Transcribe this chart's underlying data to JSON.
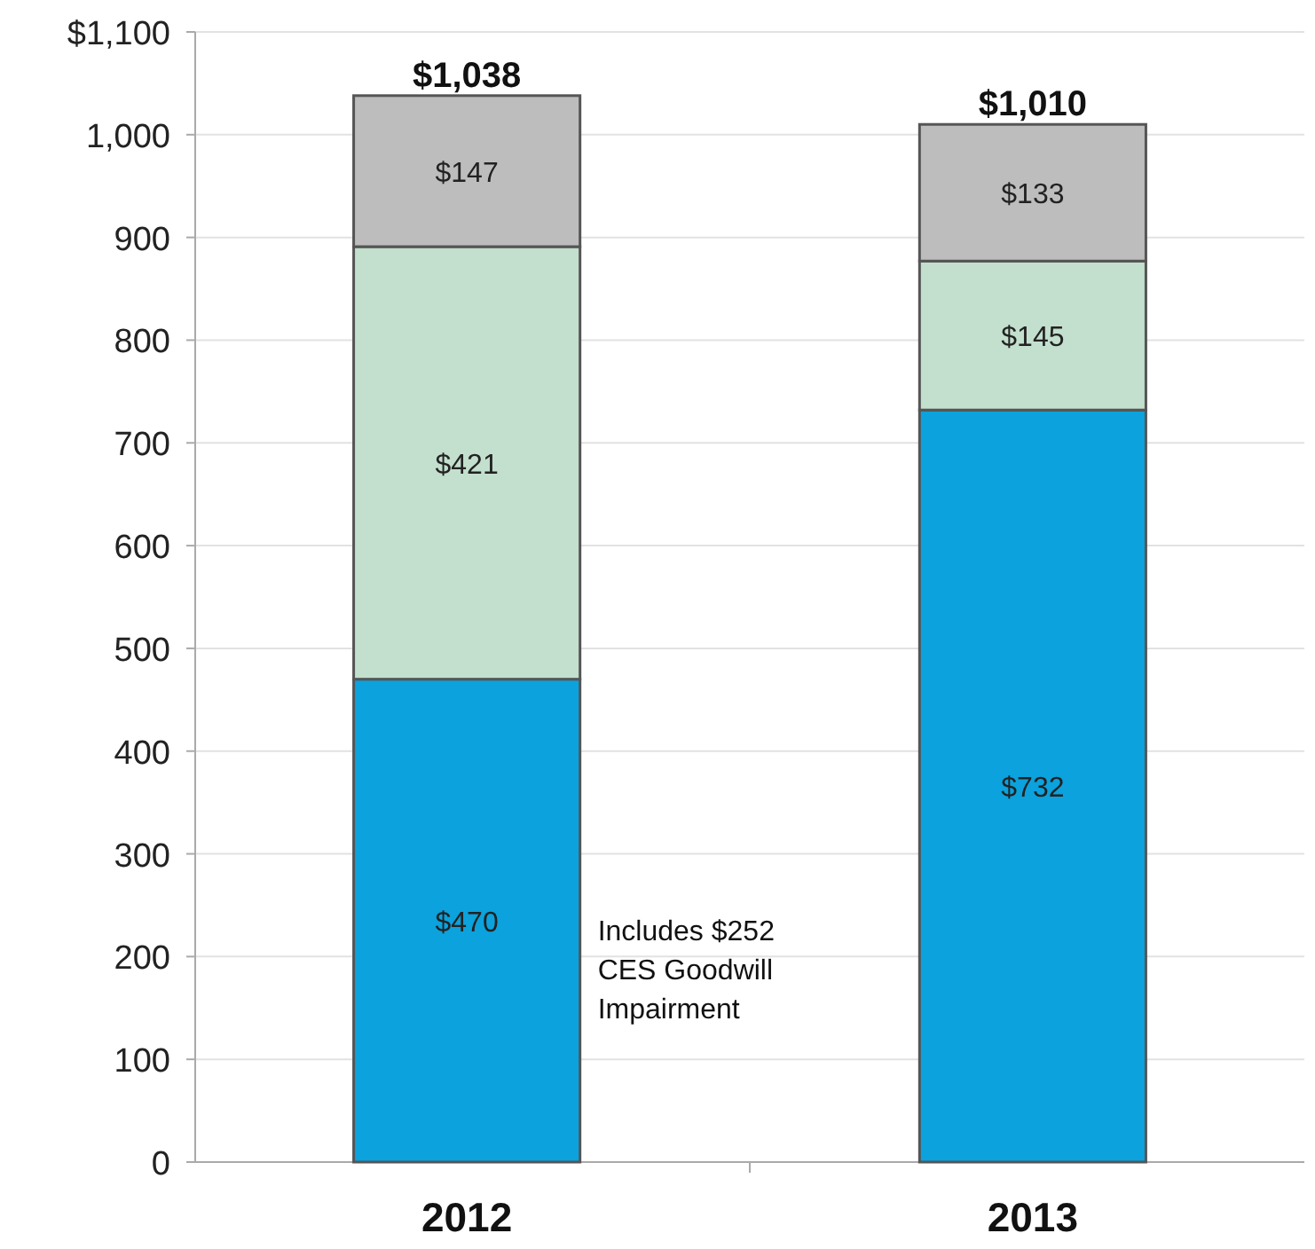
{
  "chart_data": {
    "type": "bar",
    "stacked": true,
    "categories": [
      "2012",
      "2013"
    ],
    "series": [
      {
        "color": "#0ba2dd",
        "values": [
          470,
          732
        ],
        "value_labels": [
          "$470",
          "$732"
        ]
      },
      {
        "color": "#c3dfcd",
        "values": [
          421,
          145
        ],
        "value_labels": [
          "$421",
          "$145"
        ]
      },
      {
        "color": "#bdbdbd",
        "values": [
          147,
          133
        ],
        "value_labels": [
          "$147",
          "$133"
        ]
      }
    ],
    "totals": [
      "$1,038",
      "$1,010"
    ],
    "ylim": [
      0,
      1100
    ],
    "yticks": [
      0,
      100,
      200,
      300,
      400,
      500,
      600,
      700,
      800,
      900,
      {
        "value": 1000,
        "label": "1,000"
      },
      {
        "value": 1100,
        "label": "$1,100"
      }
    ],
    "grid": "y",
    "annotations": [
      "Includes $252\nCES Goodwill\nImpairment"
    ]
  }
}
